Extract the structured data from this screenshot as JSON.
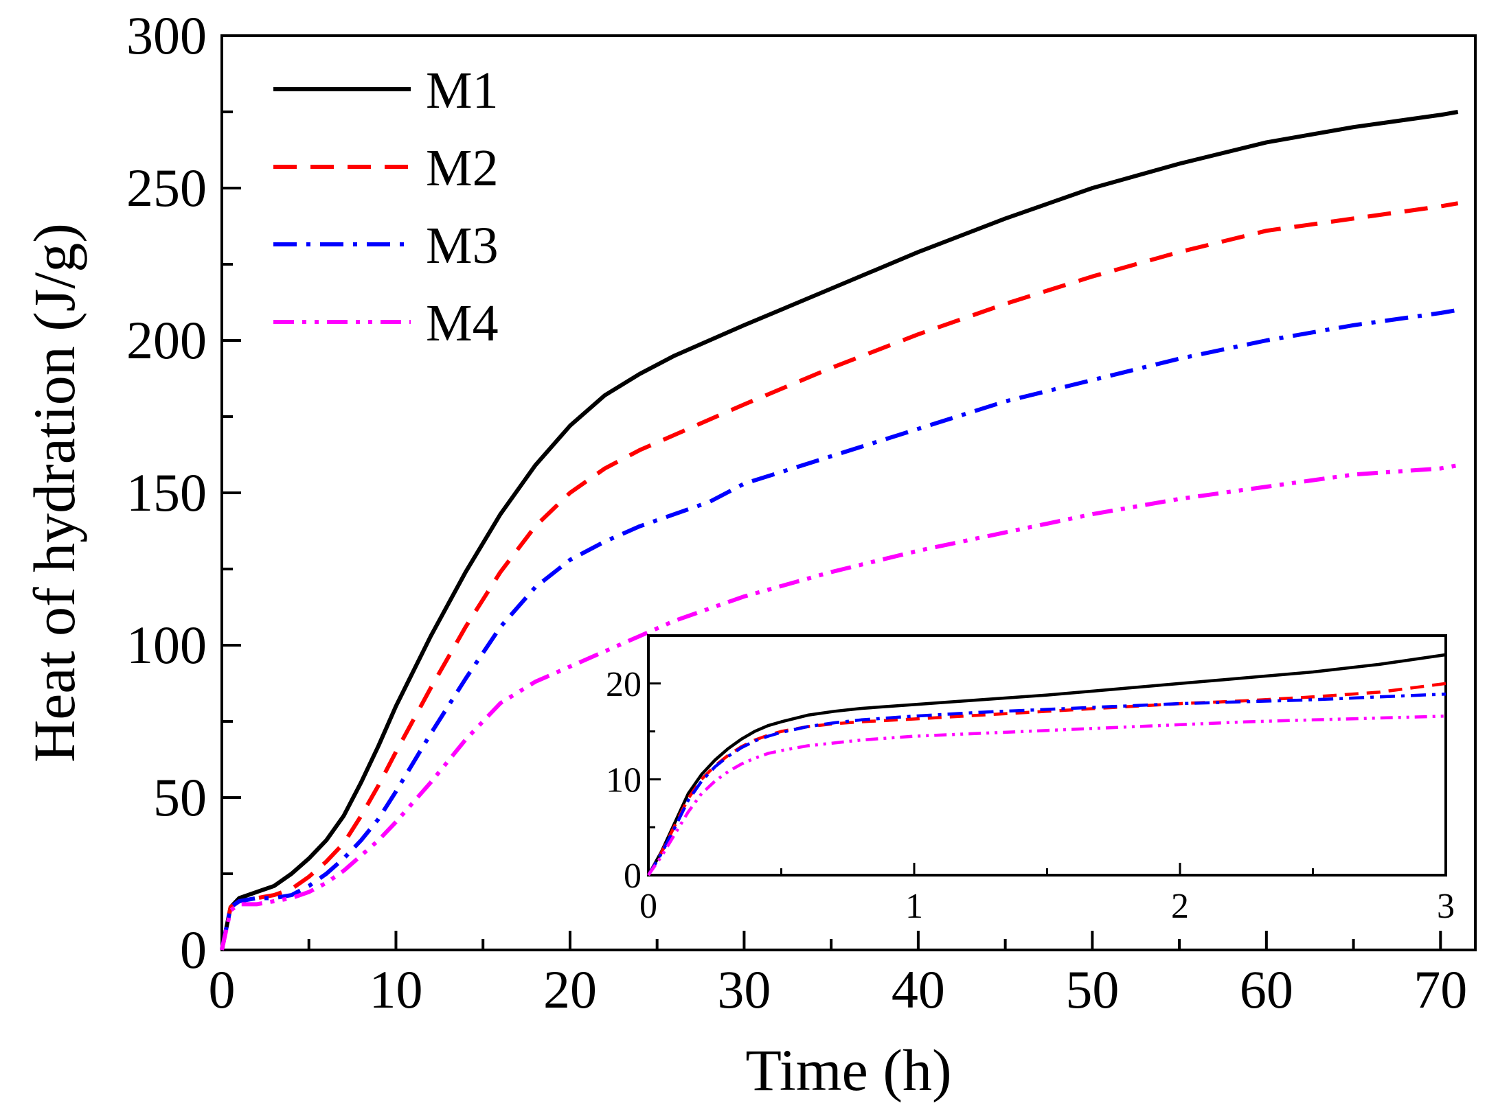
{
  "chart_data": [
    {
      "type": "line",
      "title": "",
      "xlabel": "Time (h)",
      "ylabel": "Heat of hydration (J/g)",
      "xlim": [
        0,
        72
      ],
      "ylim": [
        0,
        300
      ],
      "xticks": [
        0,
        10,
        20,
        30,
        40,
        50,
        60,
        70
      ],
      "yticks": [
        0,
        50,
        100,
        150,
        200,
        250,
        300
      ],
      "legend_position": "top-left",
      "grid": false,
      "series": [
        {
          "name": "M1",
          "color": "#000000",
          "style": "solid",
          "x": [
            0,
            0.5,
            1,
            2,
            3,
            4,
            5,
            6,
            7,
            8,
            9,
            10,
            12,
            14,
            16,
            18,
            20,
            22,
            24,
            26,
            28,
            30,
            35,
            40,
            45,
            50,
            55,
            60,
            65,
            70,
            71
          ],
          "y": [
            0,
            14,
            17,
            19,
            21,
            25,
            30,
            36,
            44,
            55,
            67,
            80,
            103,
            124,
            143,
            159,
            172,
            182,
            189,
            195,
            200,
            205,
            217,
            229,
            240,
            250,
            258,
            265,
            270,
            274,
            275
          ]
        },
        {
          "name": "M2",
          "color": "#ff0000",
          "style": "dashed",
          "x": [
            0,
            0.5,
            1,
            2,
            3,
            4,
            5,
            6,
            7,
            8,
            9,
            10,
            12,
            14,
            16,
            18,
            20,
            22,
            24,
            26,
            28,
            30,
            35,
            40,
            45,
            50,
            55,
            60,
            65,
            70,
            71
          ],
          "y": [
            0,
            14,
            16,
            17,
            18,
            20,
            24,
            29,
            35,
            44,
            54,
            65,
            86,
            106,
            124,
            139,
            150,
            158,
            164,
            169,
            174,
            179,
            191,
            202,
            212,
            221,
            229,
            236,
            240,
            244,
            245
          ]
        },
        {
          "name": "M3",
          "color": "#0000ff",
          "style": "dashdot",
          "x": [
            0,
            0.5,
            1,
            2,
            3,
            4,
            5,
            6,
            7,
            8,
            9,
            10,
            12,
            14,
            16,
            18,
            20,
            22,
            24,
            26,
            28,
            30,
            35,
            40,
            45,
            50,
            55,
            60,
            65,
            70,
            71
          ],
          "y": [
            0,
            14,
            16,
            17,
            17,
            18,
            21,
            25,
            30,
            36,
            43,
            52,
            71,
            89,
            106,
            119,
            128,
            134,
            139,
            143,
            147,
            153,
            162,
            171,
            180,
            187,
            194,
            200,
            205,
            209,
            210
          ]
        },
        {
          "name": "M4",
          "color": "#ff00ff",
          "style": "dashdotdot",
          "x": [
            0,
            0.5,
            1,
            2,
            3,
            4,
            5,
            6,
            7,
            8,
            9,
            10,
            12,
            14,
            16,
            18,
            20,
            22,
            24,
            26,
            28,
            30,
            35,
            40,
            45,
            50,
            55,
            60,
            65,
            70,
            71
          ],
          "y": [
            0,
            13,
            15,
            15,
            16,
            17,
            19,
            22,
            26,
            31,
            36,
            42,
            55,
            69,
            81,
            88,
            93,
            98,
            103,
            108,
            112,
            116,
            124,
            131,
            137,
            143,
            148,
            152,
            156,
            158,
            159
          ]
        }
      ]
    },
    {
      "type": "line",
      "title": "",
      "xlabel": "",
      "ylabel": "",
      "xlim": [
        0,
        3
      ],
      "ylim": [
        0,
        25
      ],
      "xticks": [
        0,
        1,
        2,
        3
      ],
      "yticks": [
        0,
        10,
        20
      ],
      "grid": false,
      "series": [
        {
          "name": "M1",
          "color": "#000000",
          "style": "solid",
          "x": [
            0,
            0.05,
            0.1,
            0.15,
            0.2,
            0.25,
            0.3,
            0.35,
            0.4,
            0.45,
            0.5,
            0.6,
            0.7,
            0.8,
            1.0,
            1.25,
            1.5,
            1.75,
            2.0,
            2.25,
            2.5,
            2.75,
            3.0
          ],
          "y": [
            0,
            2.5,
            5.5,
            8.5,
            10.5,
            12.0,
            13.2,
            14.2,
            15.0,
            15.6,
            16.0,
            16.7,
            17.1,
            17.4,
            17.8,
            18.3,
            18.8,
            19.4,
            20.0,
            20.6,
            21.2,
            22.0,
            23.0
          ]
        },
        {
          "name": "M2",
          "color": "#ff0000",
          "style": "dashed",
          "x": [
            0,
            0.05,
            0.1,
            0.15,
            0.2,
            0.25,
            0.3,
            0.35,
            0.4,
            0.45,
            0.5,
            0.6,
            0.7,
            0.8,
            1.0,
            1.25,
            1.5,
            1.75,
            2.0,
            2.25,
            2.5,
            2.75,
            3.0
          ],
          "y": [
            0,
            2.4,
            5.2,
            8.0,
            10.0,
            11.4,
            12.5,
            13.4,
            14.1,
            14.6,
            15.0,
            15.5,
            15.8,
            16.0,
            16.3,
            16.7,
            17.1,
            17.5,
            17.9,
            18.2,
            18.6,
            19.1,
            20.0
          ]
        },
        {
          "name": "M3",
          "color": "#0000ff",
          "style": "dashdot",
          "x": [
            0,
            0.05,
            0.1,
            0.15,
            0.2,
            0.25,
            0.3,
            0.35,
            0.4,
            0.45,
            0.5,
            0.6,
            0.7,
            0.8,
            1.0,
            1.25,
            1.5,
            1.75,
            2.0,
            2.25,
            2.5,
            2.75,
            3.0
          ],
          "y": [
            0,
            2.3,
            5.0,
            7.8,
            9.8,
            11.3,
            12.4,
            13.3,
            14.0,
            14.5,
            14.9,
            15.5,
            15.9,
            16.2,
            16.6,
            17.0,
            17.3,
            17.6,
            17.9,
            18.1,
            18.3,
            18.6,
            18.9
          ]
        },
        {
          "name": "M4",
          "color": "#ff00ff",
          "style": "dashdotdot",
          "x": [
            0,
            0.05,
            0.1,
            0.15,
            0.2,
            0.25,
            0.3,
            0.35,
            0.4,
            0.45,
            0.5,
            0.6,
            0.7,
            0.8,
            1.0,
            1.25,
            1.5,
            1.75,
            2.0,
            2.25,
            2.5,
            2.75,
            3.0
          ],
          "y": [
            0,
            2.0,
            4.3,
            6.6,
            8.5,
            9.8,
            10.8,
            11.6,
            12.2,
            12.7,
            13.0,
            13.5,
            13.8,
            14.1,
            14.5,
            14.8,
            15.1,
            15.4,
            15.7,
            16.0,
            16.2,
            16.4,
            16.6
          ]
        }
      ]
    }
  ]
}
